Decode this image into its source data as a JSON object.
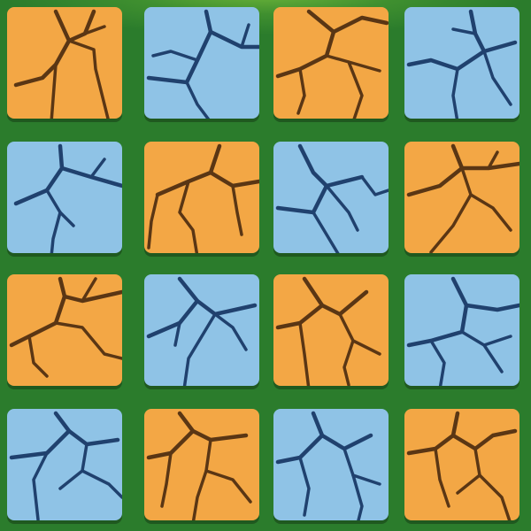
{
  "palette": {
    "board": "#2b7c2c",
    "orange_tile": "#f3a745",
    "orange_crack": "#5a3614",
    "blue_tile": "#8fc3e6",
    "blue_crack": "#20416e"
  },
  "tiles": [
    {
      "row": 0,
      "col": 0,
      "color": "orange",
      "pattern": 0
    },
    {
      "row": 0,
      "col": 1,
      "color": "blue",
      "pattern": 1
    },
    {
      "row": 0,
      "col": 2,
      "color": "orange",
      "pattern": 2
    },
    {
      "row": 0,
      "col": 3,
      "color": "blue",
      "pattern": 3
    },
    {
      "row": 1,
      "col": 0,
      "color": "blue",
      "pattern": 4
    },
    {
      "row": 1,
      "col": 1,
      "color": "orange",
      "pattern": 5
    },
    {
      "row": 1,
      "col": 2,
      "color": "blue",
      "pattern": 6
    },
    {
      "row": 1,
      "col": 3,
      "color": "orange",
      "pattern": 7
    },
    {
      "row": 2,
      "col": 0,
      "color": "orange",
      "pattern": 8
    },
    {
      "row": 2,
      "col": 1,
      "color": "blue",
      "pattern": 9
    },
    {
      "row": 2,
      "col": 2,
      "color": "orange",
      "pattern": 10
    },
    {
      "row": 2,
      "col": 3,
      "color": "blue",
      "pattern": 11
    },
    {
      "row": 3,
      "col": 0,
      "color": "blue",
      "pattern": 12
    },
    {
      "row": 3,
      "col": 1,
      "color": "orange",
      "pattern": 13
    },
    {
      "row": 3,
      "col": 2,
      "color": "blue",
      "pattern": 14
    },
    {
      "row": 3,
      "col": 3,
      "color": "orange",
      "pattern": 15
    }
  ]
}
